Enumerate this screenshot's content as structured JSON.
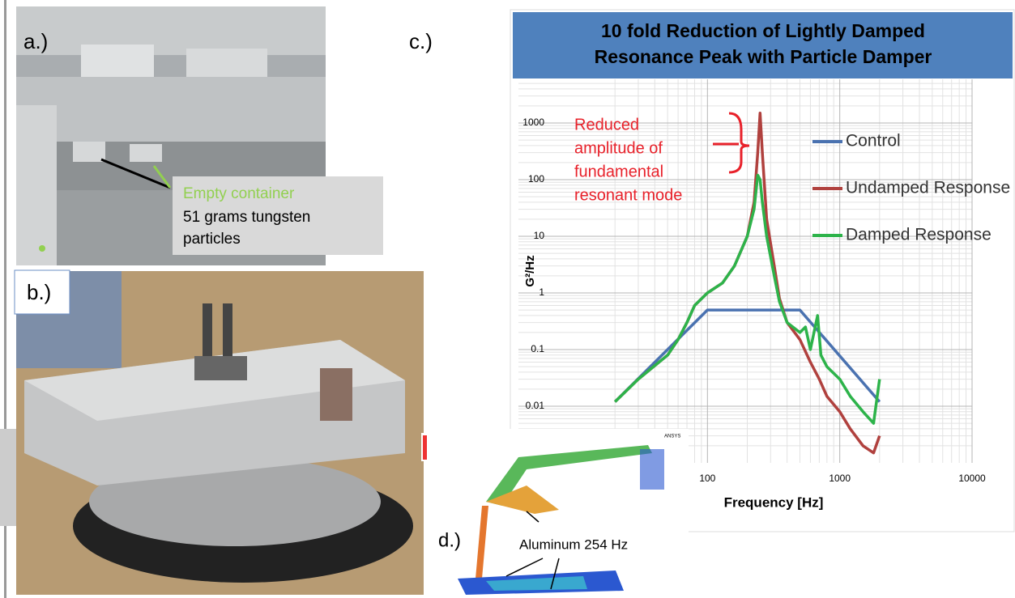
{
  "panels": {
    "a": {
      "label": "a.)",
      "note_green": "Empty container",
      "note_black": [
        "51 grams tungsten",
        "particles"
      ]
    },
    "b": {
      "label": "b.)"
    },
    "d": {
      "label": "d.)",
      "note": "Aluminum 254 Hz",
      "software": "ANSYS"
    }
  },
  "chart_data": {
    "type": "line",
    "panel_label": "c.)",
    "title": [
      "10 fold Reduction of Lightly Damped",
      "Resonance Peak with Particle Damper"
    ],
    "x_label": "Frequency [Hz]",
    "y_label": "G²/Hz",
    "log_x": true,
    "log_y": true,
    "grid": true,
    "xlim": [
      10,
      10000
    ],
    "ylim": [
      0.001,
      10000
    ],
    "xticks": [
      100,
      1000,
      10000
    ],
    "yticks": [
      0.01,
      0.1,
      1,
      10,
      100,
      1000
    ],
    "annotation": [
      "Reduced",
      "amplitude of",
      "fundamental",
      "resonant mode"
    ],
    "series": [
      {
        "name": "Control",
        "color": "#4a72b0",
        "x": [
          20,
          100,
          500,
          2000
        ],
        "values": [
          0.012,
          0.5,
          0.5,
          0.012
        ]
      },
      {
        "name": "Undamped Response",
        "color": "#b0413e",
        "x": [
          20,
          30,
          50,
          60,
          70,
          80,
          100,
          130,
          160,
          200,
          225,
          240,
          250,
          260,
          280,
          320,
          350,
          400,
          500,
          600,
          700,
          800,
          1000,
          1200,
          1500,
          1800,
          2000
        ],
        "values": [
          0.012,
          0.03,
          0.08,
          0.15,
          0.3,
          0.6,
          1,
          1.5,
          3,
          10,
          40,
          300,
          1500,
          300,
          20,
          3,
          0.8,
          0.3,
          0.15,
          0.06,
          0.03,
          0.015,
          0.008,
          0.004,
          0.002,
          0.0015,
          0.003
        ]
      },
      {
        "name": "Damped Response",
        "color": "#2db34a",
        "x": [
          20,
          30,
          50,
          60,
          70,
          80,
          100,
          130,
          160,
          200,
          225,
          240,
          250,
          260,
          280,
          320,
          350,
          400,
          500,
          550,
          600,
          680,
          720,
          800,
          1000,
          1200,
          1500,
          1800,
          2000
        ],
        "values": [
          0.012,
          0.03,
          0.08,
          0.15,
          0.3,
          0.6,
          1,
          1.5,
          3,
          10,
          30,
          120,
          100,
          40,
          10,
          2,
          0.7,
          0.3,
          0.2,
          0.25,
          0.1,
          0.4,
          0.08,
          0.05,
          0.03,
          0.015,
          0.008,
          0.005,
          0.03
        ]
      }
    ]
  }
}
